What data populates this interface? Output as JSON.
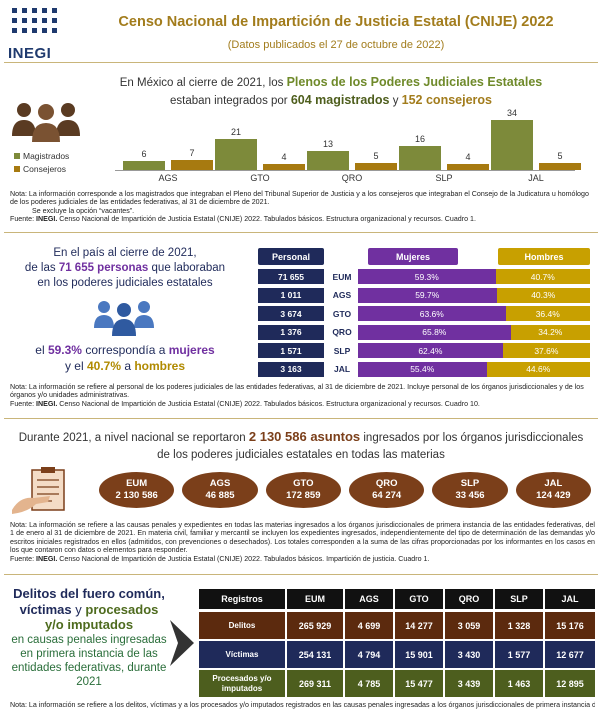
{
  "header": {
    "logo": "INEGI",
    "title": "Censo Nacional de Impartición de Justicia Estatal (CNIJE) 2022",
    "subtitle": "(Datos publicados el 27 de octubre de 2022)"
  },
  "plenos": {
    "heading": [
      "En México al cierre de 2021, los ",
      "Plenos de los Poderes Judiciales Estatales",
      "estaban integrados por ",
      "604 magistrados",
      " y ",
      "152 consejeros"
    ],
    "legend": [
      "Magistrados",
      "Consejeros"
    ],
    "categories": [
      "AGS",
      "GTO",
      "QRO",
      "SLP",
      "JAL"
    ],
    "magistrados": [
      6,
      21,
      13,
      16,
      34
    ],
    "consejeros": [
      7,
      4,
      5,
      4,
      5
    ],
    "note": [
      "Nota: La información corresponde a los magistrados que integraban el Pleno del Tribunal Superior de Justicia y a los consejeros que integraban el Consejo de la Judicatura u homólogo de los poderes judiciales de las entidades federativas, al 31 de diciembre de 2021.",
      "Se excluye la opción “vacantes”."
    ],
    "source": {
      "label": "Fuente: ",
      "org": "INEGI.",
      "text": " Censo Nacional de Impartición de Justicia Estatal (CNIJE) 2022. Tabulados básicos. Estructura organizacional y recursos. Cuadro 1."
    }
  },
  "personal": {
    "text": [
      "En el país al cierre de 2021,",
      "de las ",
      "71 655 personas",
      " que laboraban",
      "en los poderes judiciales estatales",
      "el ",
      "59.3%",
      " correspondía a ",
      "mujeres",
      "y el ",
      "40.7%",
      " a ",
      "hombres"
    ],
    "headers": [
      "Personal",
      "Mujeres",
      "Hombres"
    ],
    "rows": [
      {
        "personal": "71 655",
        "entity": "EUM",
        "mujeres": 59.3,
        "mujeres_label": "59.3%",
        "hombres": 40.7,
        "hombres_label": "40.7%"
      },
      {
        "personal": "1 011",
        "entity": "AGS",
        "mujeres": 59.7,
        "mujeres_label": "59.7%",
        "hombres": 40.3,
        "hombres_label": "40.3%"
      },
      {
        "personal": "3 674",
        "entity": "GTO",
        "mujeres": 63.6,
        "mujeres_label": "63.6%",
        "hombres": 36.4,
        "hombres_label": "36.4%"
      },
      {
        "personal": "1 376",
        "entity": "QRO",
        "mujeres": 65.8,
        "mujeres_label": "65.8%",
        "hombres": 34.2,
        "hombres_label": "34.2%"
      },
      {
        "personal": "1 571",
        "entity": "SLP",
        "mujeres": 62.4,
        "mujeres_label": "62.4%",
        "hombres": 37.6,
        "hombres_label": "37.6%"
      },
      {
        "personal": "3 163",
        "entity": "JAL",
        "mujeres": 55.4,
        "mujeres_label": "55.4%",
        "hombres": 44.6,
        "hombres_label": "44.6%"
      }
    ],
    "note": "Nota: La información se refiere al personal de los poderes judiciales de las entidades federativas, al 31 de diciembre de 2021. Incluye personal de los órganos jurisdiccionales y de los órganos y/o unidades administrativas.",
    "source": {
      "label": "Fuente: ",
      "org": "INEGI.",
      "text": " Censo Nacional de Impartición de Justicia Estatal (CNIJE) 2022. Tabulados básicos. Estructura organizacional y recursos. Cuadro 10."
    }
  },
  "asuntos": {
    "heading": [
      "Durante 2021, a nivel nacional se reportaron ",
      "2 130 586 asuntos",
      " ingresados por los órganos jurisdiccionales",
      "de los poderes judiciales estatales en todas las materias"
    ],
    "items": [
      {
        "entity": "EUM",
        "value": "2 130 586"
      },
      {
        "entity": "AGS",
        "value": "46 885"
      },
      {
        "entity": "GTO",
        "value": "172 859"
      },
      {
        "entity": "QRO",
        "value": "64 274"
      },
      {
        "entity": "SLP",
        "value": "33 456"
      },
      {
        "entity": "JAL",
        "value": "124 429"
      }
    ],
    "note": "Nota: La información se refiere a las causas penales y expedientes en todas las materias ingresados a los órganos jurisdiccionales de primera instancia de las entidades federativas, del 1 de enero al 31 de diciembre de 2021. En materia civil, familiar y mercantil se incluyen los expedientes ingresados, independientemente del tipo de determinación de las demandas y/o escritos iniciales registrados en ellos (admitidos, con prevenciones o desechados). Los totales corresponden a la suma de las cifras proporcionadas por los informantes en los casos en los que contaron con datos o elementos para responder.",
    "source": {
      "label": "Fuente: ",
      "org": "INEGI.",
      "text": " Censo Nacional de Impartición de Justicia Estatal (CNIJE) 2022. Tabulados básicos. Impartición de justicia. Cuadro 1."
    }
  },
  "delitos": {
    "text": [
      "Delitos del fuero común,",
      "víctimas",
      " y ",
      "procesados",
      "y/o imputados",
      "en causas penales ingresadas en primera instancia de las entidades federativas, durante 2021"
    ],
    "headers": [
      "Registros",
      "EUM",
      "AGS",
      "GTO",
      "QRO",
      "SLP",
      "JAL"
    ],
    "rows": [
      [
        "Delitos",
        "265 929",
        "4 699",
        "14 277",
        "3 059",
        "1 328",
        "15 176"
      ],
      [
        "Víctimas",
        "254 131",
        "4 794",
        "15 901",
        "3 430",
        "1 577",
        "12 677"
      ],
      [
        "Procesados y/o imputados",
        "269 311",
        "4 785",
        "15 477",
        "3 439",
        "1 463",
        "12 895"
      ]
    ],
    "note": "Nota: La información se refiere a los delitos, víctimas y a los procesados y/o imputados registrados en las causas penales ingresadas a los órganos jurisdiccionales de primera instancia de las entidades federativas."
  }
}
